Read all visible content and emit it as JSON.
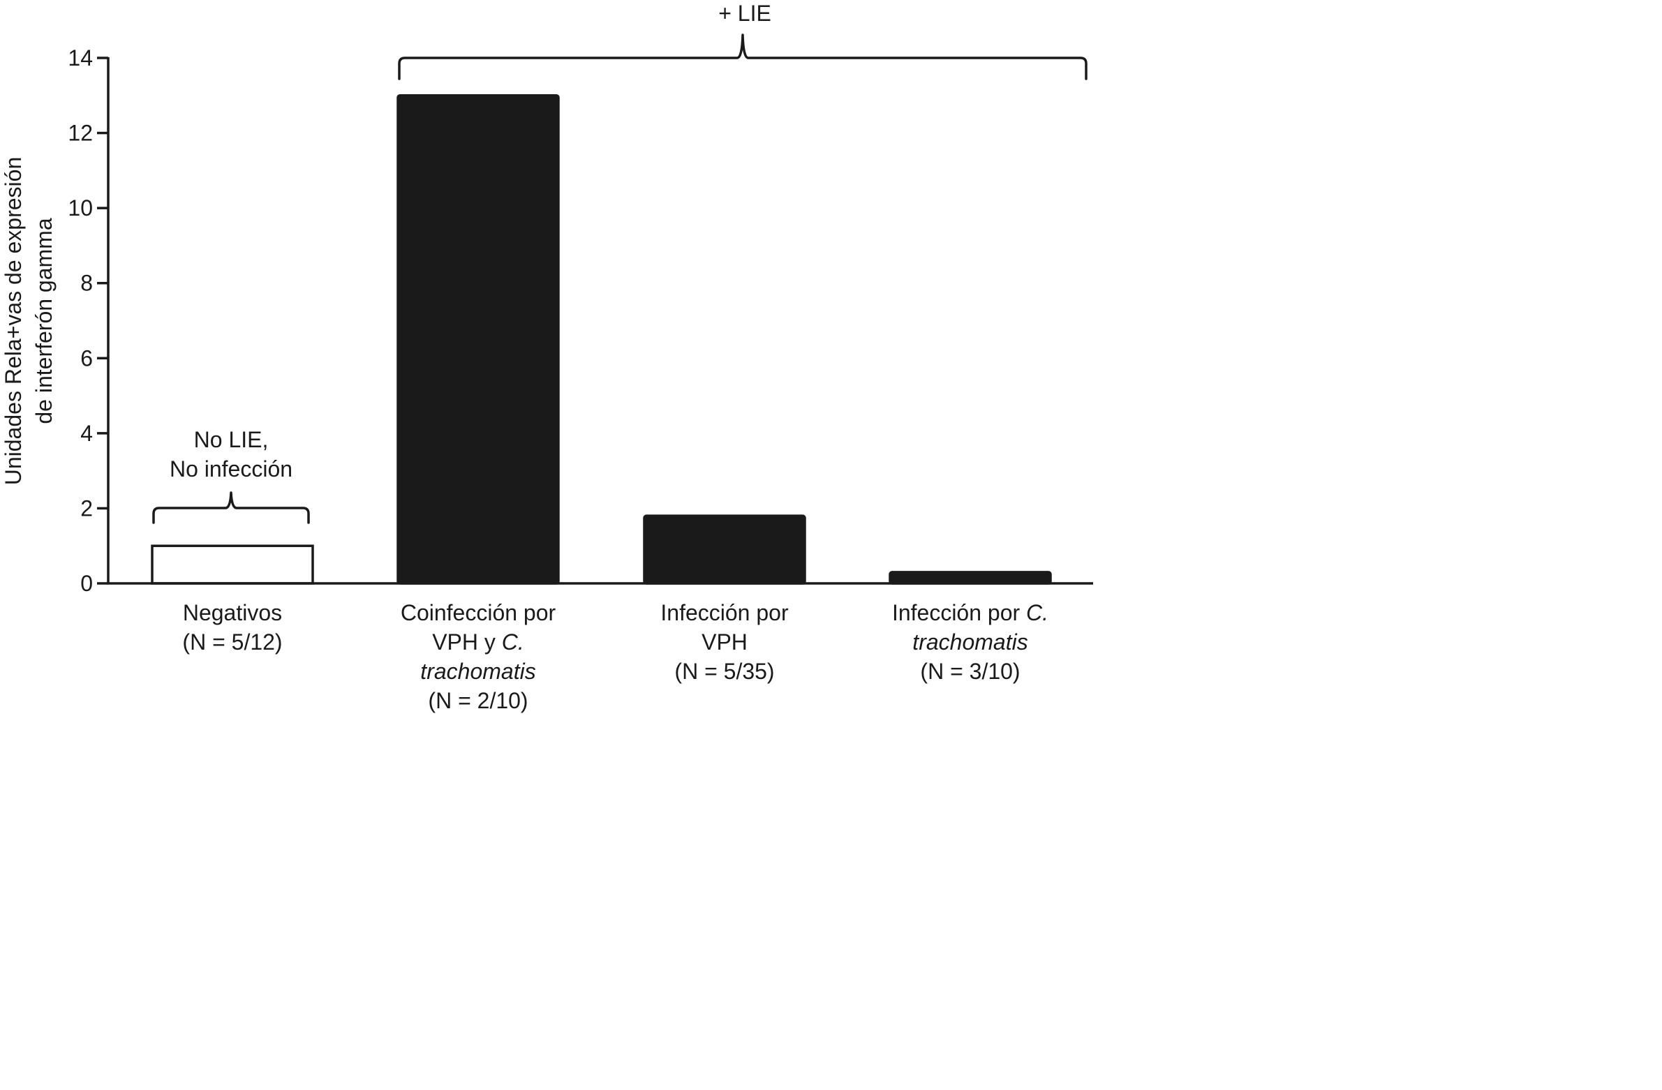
{
  "chart_data": {
    "type": "bar",
    "ylabel": [
      "Unidades Rela+vas de expresión",
      "de interferón gamma"
    ],
    "ylim": [
      0,
      14
    ],
    "yticks": [
      "0",
      "2",
      "4",
      "6",
      "8",
      "10",
      "12",
      "14"
    ],
    "grid": false,
    "categories": [
      {
        "lines": [
          [
            {
              "text": "Negativos",
              "italic": false
            }
          ],
          [
            {
              "text": "(N = 5/12)",
              "italic": false
            }
          ]
        ],
        "value": 1,
        "fill": "#ffffff"
      },
      {
        "lines": [
          [
            {
              "text": "Coinfección por",
              "italic": false
            }
          ],
          [
            {
              "text": "VPH y ",
              "italic": false
            },
            {
              "text": "C.",
              "italic": true
            }
          ],
          [
            {
              "text": "trachomatis",
              "italic": true
            }
          ],
          [
            {
              "text": "(N = 2/10)",
              "italic": false
            }
          ]
        ],
        "value": 13,
        "fill": "#1a1a1a"
      },
      {
        "lines": [
          [
            {
              "text": "Infección por",
              "italic": false
            }
          ],
          [
            {
              "text": "VPH",
              "italic": false
            }
          ],
          [
            {
              "text": "(N = 5/35)",
              "italic": false
            }
          ]
        ],
        "value": 1.8,
        "fill": "#1a1a1a"
      },
      {
        "lines": [
          [
            {
              "text": "Infección por ",
              "italic": false
            },
            {
              "text": "C.",
              "italic": true
            }
          ],
          [
            {
              "text": "trachomatis",
              "italic": true
            }
          ],
          [
            {
              "text": "(N = 3/10)",
              "italic": false
            }
          ]
        ],
        "value": 0.3,
        "fill": "#1a1a1a"
      }
    ],
    "annotations": {
      "no_lie": [
        "No LIE,",
        "No infección"
      ],
      "lie": "+ LIE"
    }
  }
}
